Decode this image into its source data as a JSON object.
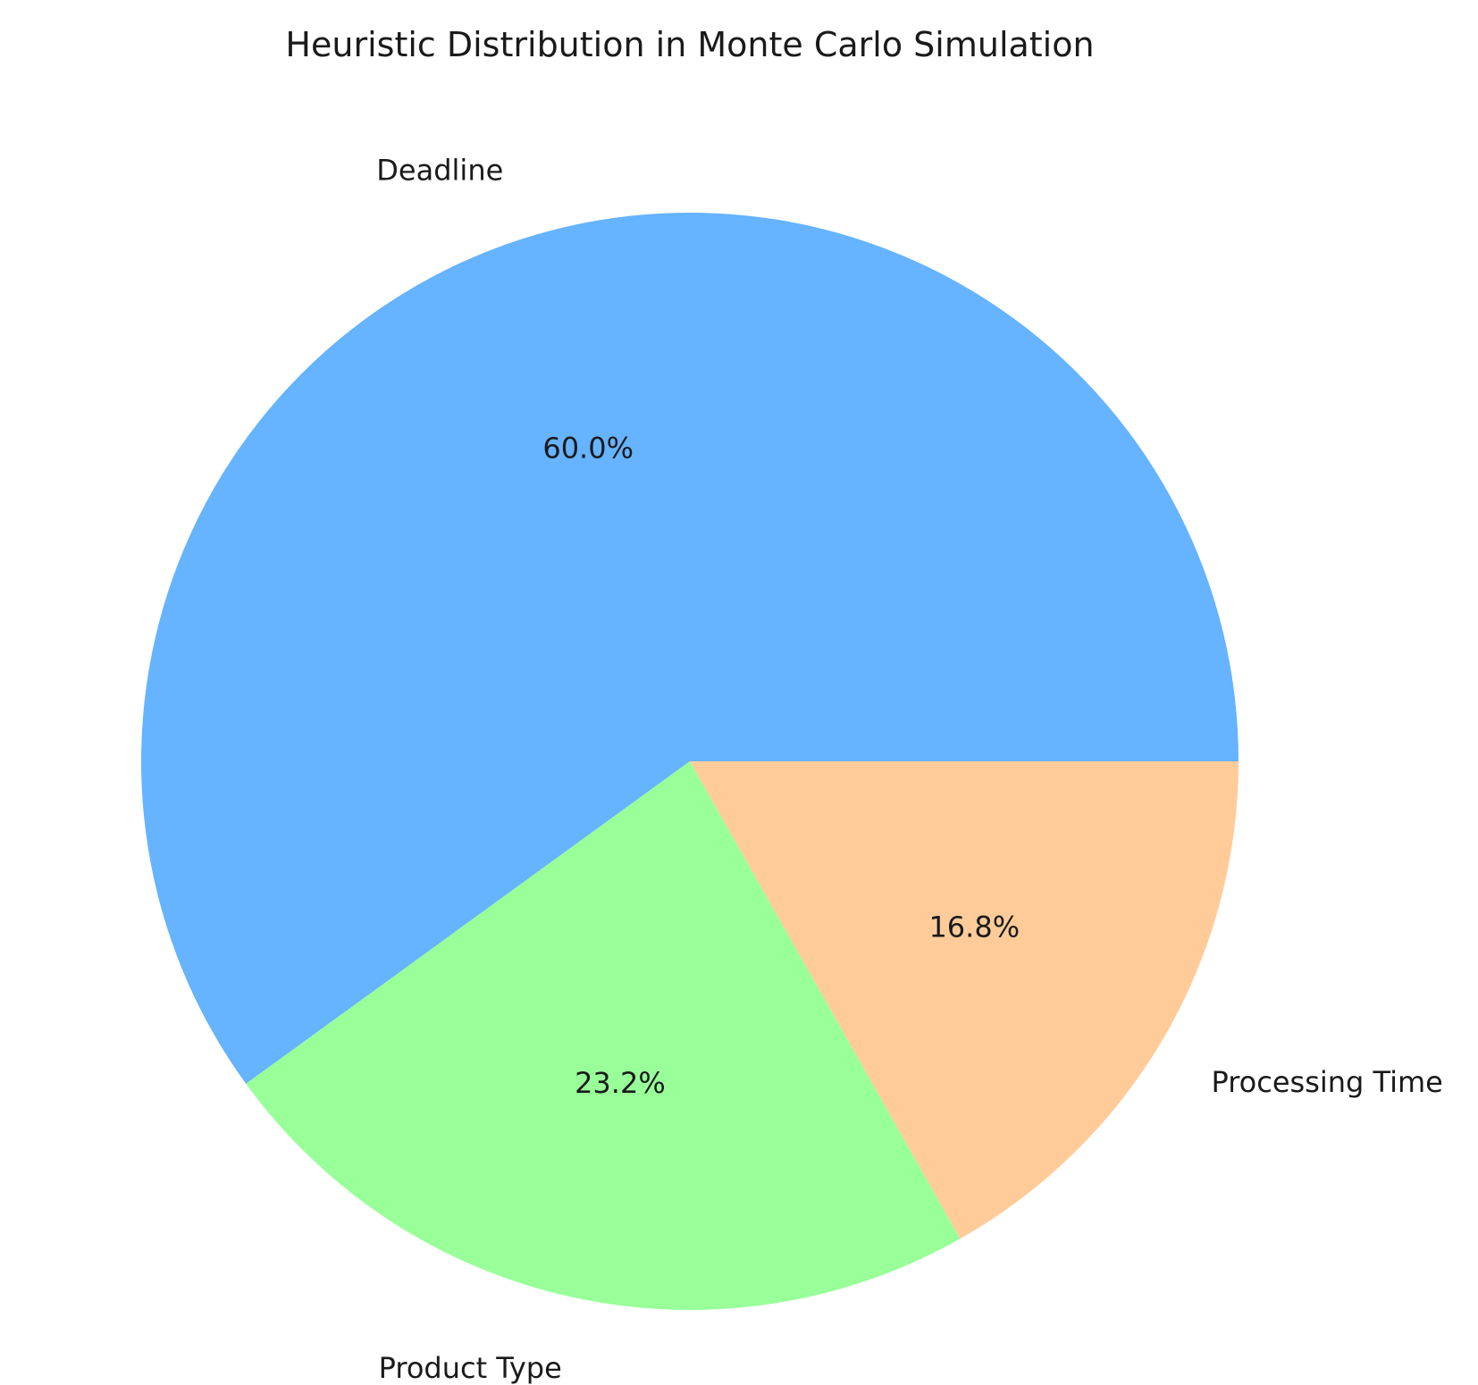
{
  "chart_data": {
    "type": "pie",
    "title": "Heuristic Distribution in Monte Carlo Simulation",
    "categories": [
      "Deadline",
      "Product Type",
      "Processing Time"
    ],
    "values": [
      60.0,
      23.2,
      16.8
    ],
    "percent_labels": [
      "60.0%",
      "23.2%",
      "16.8%"
    ],
    "colors": [
      "#66b3ff",
      "#99ff99",
      "#ffcc99"
    ],
    "start_angle_deg": 0,
    "direction": "counterclockwise"
  }
}
